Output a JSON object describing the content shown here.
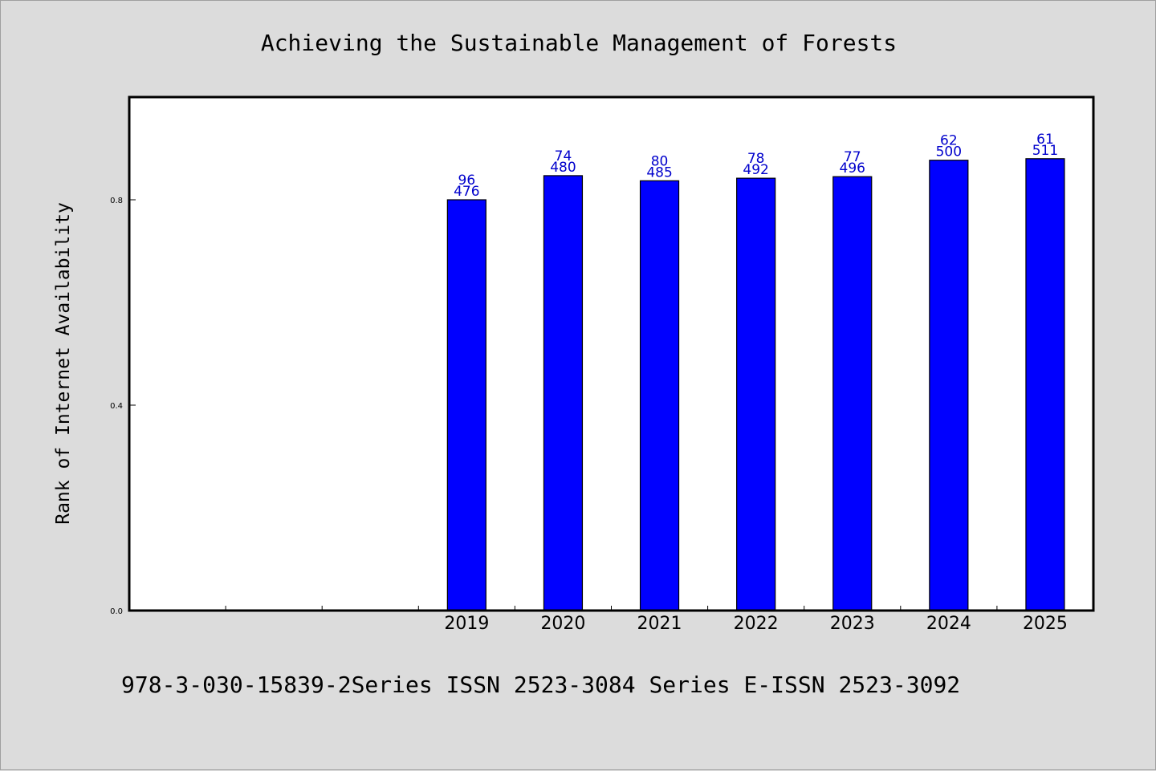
{
  "chart_data": {
    "type": "bar",
    "title": "Achieving the Sustainable Management of Forests",
    "xlabel": "",
    "ylabel": "Rank of Internet Availability",
    "ylim": [
      0,
      1.0
    ],
    "yticks": [
      "0.0",
      "0.4",
      "0.8"
    ],
    "categories": [
      "",
      "",
      "",
      "2019",
      "2020",
      "2021",
      "2022",
      "2023",
      "2024",
      "2025"
    ],
    "values": [
      null,
      null,
      null,
      0.8,
      0.847,
      0.837,
      0.842,
      0.845,
      0.877,
      0.88
    ],
    "data_labels": [
      null,
      null,
      null,
      [
        "96",
        "476"
      ],
      [
        "74",
        "480"
      ],
      [
        "80",
        "485"
      ],
      [
        "78",
        "492"
      ],
      [
        "77",
        "496"
      ],
      [
        "62",
        "500"
      ],
      [
        "61",
        "511"
      ]
    ],
    "bar_color": "#0000ff",
    "label_color": "#0000cc",
    "grid": false,
    "legend": "none"
  },
  "footer": "978-3-030-15839-2Series ISSN 2523-3084 Series E-ISSN 2523-3092"
}
